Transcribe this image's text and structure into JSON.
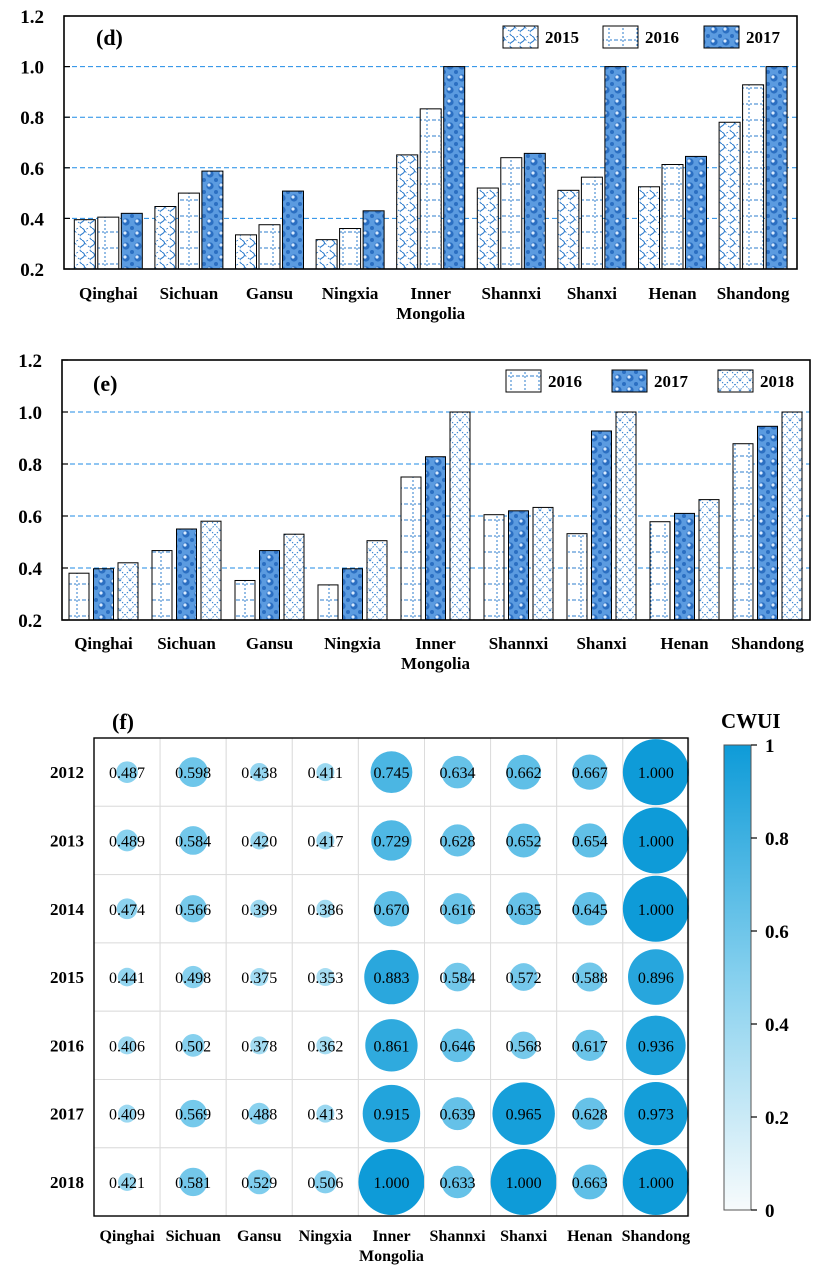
{
  "chart_data": [
    {
      "type": "bar",
      "panel": "(d)",
      "categories": [
        "Qinghai",
        "Sichuan",
        "Gansu",
        "Ningxia",
        "Inner Mongolia",
        "Shannxi",
        "Shanxi",
        "Henan",
        "Shandong"
      ],
      "category_lines": [
        [
          "Qinghai"
        ],
        [
          "Sichuan"
        ],
        [
          "Gansu"
        ],
        [
          "Ningxia"
        ],
        [
          "Inner",
          "Mongolia"
        ],
        [
          "Shannxi"
        ],
        [
          "Shanxi"
        ],
        [
          "Henan"
        ],
        [
          "Shandong"
        ]
      ],
      "series": [
        {
          "name": "2015",
          "pattern": "wave",
          "values": [
            0.395,
            0.447,
            0.335,
            0.316,
            0.651,
            0.52,
            0.511,
            0.525,
            0.78
          ]
        },
        {
          "name": "2016",
          "pattern": "grid",
          "values": [
            0.405,
            0.5,
            0.375,
            0.36,
            0.833,
            0.64,
            0.563,
            0.613,
            0.928
          ]
        },
        {
          "name": "2017",
          "pattern": "dots",
          "values": [
            0.42,
            0.587,
            0.508,
            0.43,
            1.0,
            0.657,
            1.0,
            0.645,
            1.0
          ]
        }
      ],
      "ylim": [
        0.2,
        1.2
      ],
      "yticks": [
        0.2,
        0.4,
        0.6,
        0.8,
        1.0,
        1.2
      ],
      "ytick_labels": [
        "0.2",
        "0.4",
        "0.6",
        "0.8",
        "1.0",
        "1.2"
      ],
      "gridlines": [
        0.4,
        0.6,
        0.8,
        1.0
      ],
      "legend_position": "top-right",
      "title": "",
      "xlabel": "",
      "ylabel": ""
    },
    {
      "type": "bar",
      "panel": "(e)",
      "categories": [
        "Qinghai",
        "Sichuan",
        "Gansu",
        "Ningxia",
        "Inner Mongolia",
        "Shannxi",
        "Shanxi",
        "Henan",
        "Shandong"
      ],
      "category_lines": [
        [
          "Qinghai"
        ],
        [
          "Sichuan"
        ],
        [
          "Gansu"
        ],
        [
          "Ningxia"
        ],
        [
          "Inner",
          "Mongolia"
        ],
        [
          "Shannxi"
        ],
        [
          "Shanxi"
        ],
        [
          "Henan"
        ],
        [
          "Shandong"
        ]
      ],
      "series": [
        {
          "name": "2016",
          "pattern": "grid",
          "values": [
            0.38,
            0.467,
            0.352,
            0.335,
            0.75,
            0.605,
            0.532,
            0.578,
            0.878
          ]
        },
        {
          "name": "2017",
          "pattern": "dots",
          "values": [
            0.397,
            0.55,
            0.467,
            0.397,
            0.828,
            0.62,
            0.927,
            0.61,
            0.945
          ]
        },
        {
          "name": "2018",
          "pattern": "cross",
          "values": [
            0.42,
            0.58,
            0.53,
            0.505,
            1.0,
            0.633,
            1.0,
            0.663,
            1.0
          ]
        }
      ],
      "ylim": [
        0.2,
        1.2
      ],
      "yticks": [
        0.2,
        0.4,
        0.6,
        0.8,
        1.0,
        1.2
      ],
      "ytick_labels": [
        "0.2",
        "0.4",
        "0.6",
        "0.8",
        "1.0",
        "1.2"
      ],
      "gridlines": [
        0.4,
        0.6,
        0.8,
        1.0
      ],
      "legend_position": "top-right",
      "title": "",
      "xlabel": "",
      "ylabel": ""
    },
    {
      "type": "heatmap",
      "panel": "(f)",
      "x_categories": [
        "Qinghai",
        "Sichuan",
        "Gansu",
        "Ningxia",
        "Inner Mongolia",
        "Shannxi",
        "Shanxi",
        "Henan",
        "Shandong"
      ],
      "x_category_lines": [
        [
          "Qinghai"
        ],
        [
          "Sichuan"
        ],
        [
          "Gansu"
        ],
        [
          "Ningxia"
        ],
        [
          "Inner",
          "Mongolia"
        ],
        [
          "Shannxi"
        ],
        [
          "Shanxi"
        ],
        [
          "Henan"
        ],
        [
          "Shandong"
        ]
      ],
      "y_categories": [
        "2012",
        "2013",
        "2014",
        "2015",
        "2016",
        "2017",
        "2018"
      ],
      "values": [
        [
          0.487,
          0.598,
          0.438,
          0.411,
          0.745,
          0.634,
          0.662,
          0.667,
          1.0
        ],
        [
          0.489,
          0.584,
          0.42,
          0.417,
          0.729,
          0.628,
          0.652,
          0.654,
          1.0
        ],
        [
          0.474,
          0.566,
          0.399,
          0.386,
          0.67,
          0.616,
          0.635,
          0.645,
          1.0
        ],
        [
          0.441,
          0.498,
          0.375,
          0.353,
          0.883,
          0.584,
          0.572,
          0.588,
          0.896
        ],
        [
          0.406,
          0.502,
          0.378,
          0.362,
          0.861,
          0.646,
          0.568,
          0.617,
          0.936
        ],
        [
          0.409,
          0.569,
          0.488,
          0.413,
          0.915,
          0.639,
          0.965,
          0.628,
          0.973
        ],
        [
          0.421,
          0.581,
          0.529,
          0.506,
          1.0,
          0.633,
          1.0,
          0.663,
          1.0
        ]
      ],
      "value_labels": [
        [
          "0.487",
          "0.598",
          "0.438",
          "0.411",
          "0.745",
          "0.634",
          "0.662",
          "0.667",
          "1.000"
        ],
        [
          "0.489",
          "0.584",
          "0.420",
          "0.417",
          "0.729",
          "0.628",
          "0.652",
          "0.654",
          "1.000"
        ],
        [
          "0.474",
          "0.566",
          "0.399",
          "0.386",
          "0.670",
          "0.616",
          "0.635",
          "0.645",
          "1.000"
        ],
        [
          "0.441",
          "0.498",
          "0.375",
          "0.353",
          "0.883",
          "0.584",
          "0.572",
          "0.588",
          "0.896"
        ],
        [
          "0.406",
          "0.502",
          "0.378",
          "0.362",
          "0.861",
          "0.646",
          "0.568",
          "0.617",
          "0.936"
        ],
        [
          "0.409",
          "0.569",
          "0.488",
          "0.413",
          "0.915",
          "0.639",
          "0.965",
          "0.628",
          "0.973"
        ],
        [
          "0.421",
          "0.581",
          "0.529",
          "0.506",
          "1.000",
          "0.633",
          "1.000",
          "0.663",
          "1.000"
        ]
      ],
      "colorbar": {
        "title": "CWUI",
        "range": [
          0,
          1
        ],
        "ticks": [
          0,
          0.2,
          0.4,
          0.6,
          0.8,
          1
        ],
        "tick_labels": [
          "0",
          "0.2",
          "0.4",
          "0.6",
          "0.8",
          "1"
        ],
        "color_low": "#f7fbfc",
        "color_high": "#0e9bd8"
      },
      "marker": "circle sized and colored by value"
    }
  ],
  "colors": {
    "bar_pattern": "#2e7ccc",
    "bar_dots_fill": "#5b9be0",
    "gridline": "#1f8be6",
    "bubble_mid": "#5ec3ea",
    "bubble_high": "#0e9bd8"
  }
}
